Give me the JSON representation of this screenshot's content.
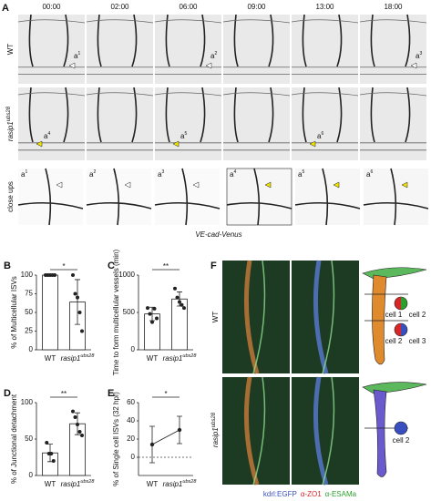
{
  "panel_a": {
    "label": "A",
    "timepoints": [
      "00:00",
      "02:00",
      "06:00",
      "09:00",
      "13:00",
      "18:00"
    ],
    "row_wt": "WT",
    "row_mutant": {
      "gene": "rasip1",
      "allele": "ubs28"
    },
    "row_closeups": "close ups",
    "annotations": [
      {
        "base": "a",
        "sup": "1"
      },
      {
        "base": "a",
        "sup": "2"
      },
      {
        "base": "a",
        "sup": "3"
      },
      {
        "base": "a",
        "sup": "4"
      },
      {
        "base": "a",
        "sup": "5"
      },
      {
        "base": "a",
        "sup": "6"
      }
    ],
    "caption": "VE-cad-Venus"
  },
  "panel_f": {
    "label": "F",
    "row_wt": "WT",
    "row_mutant": {
      "gene": "rasip1",
      "allele": "ubs28"
    },
    "cell_labels": [
      "cell 1",
      "cell 2",
      "cell 2",
      "cell 3",
      "cell 2"
    ],
    "legend": [
      "kdrl:EGFP",
      "α-ZO1",
      "α-ESAMa"
    ]
  },
  "chart_data": [
    {
      "type": "bar",
      "label": "B",
      "ylabel": "% of Multicellular ISVs",
      "categories": [
        "WT",
        "rasip1"
      ],
      "category_superscripts": [
        null,
        "ubs28"
      ],
      "values": [
        100,
        64
      ],
      "errors": [
        0,
        30
      ],
      "points": [
        [
          100,
          100,
          100,
          100,
          100
        ],
        [
          100,
          75,
          70,
          50,
          25
        ]
      ],
      "ylim": [
        0,
        100
      ],
      "yticks": [
        0,
        25,
        50,
        75,
        100
      ],
      "significance": "*"
    },
    {
      "type": "bar",
      "label": "C",
      "ylabel": "Time to form multicellular vessels (min)",
      "categories": [
        "WT",
        "rasip1"
      ],
      "category_superscripts": [
        null,
        "ubs28"
      ],
      "values": [
        480,
        680
      ],
      "errors": [
        90,
        95
      ],
      "points": [
        [
          560,
          480,
          370,
          550,
          420
        ],
        [
          820,
          700,
          640,
          600,
          560
        ]
      ],
      "ylim": [
        0,
        1000
      ],
      "yticks": [
        0,
        500,
        1000
      ],
      "significance": "**"
    },
    {
      "type": "bar",
      "label": "D",
      "ylabel": "% of Junctional detachment",
      "categories": [
        "WT",
        "rasip1"
      ],
      "category_superscripts": [
        null,
        "ubs28"
      ],
      "values": [
        31,
        71
      ],
      "errors": [
        12,
        15
      ],
      "points": [
        [
          45,
          30,
          30,
          20
        ],
        [
          88,
          80,
          70,
          60,
          55
        ]
      ],
      "ylim": [
        0,
        100
      ],
      "yticks": [
        0,
        50,
        100
      ],
      "significance": "**"
    },
    {
      "type": "errorbar",
      "label": "E",
      "ylabel": "% of Single cell ISVs (32 hpf)",
      "categories": [
        "WT",
        "rasip1"
      ],
      "category_superscripts": [
        null,
        "ubs28"
      ],
      "values": [
        14,
        30
      ],
      "errors": [
        20,
        15
      ],
      "reference_line": 0,
      "ylim": [
        -20,
        60
      ],
      "yticks": [
        0,
        20,
        40,
        60
      ],
      "significance": "*"
    }
  ]
}
